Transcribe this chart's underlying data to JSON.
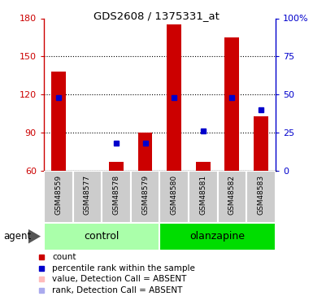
{
  "title": "GDS2608 / 1375331_at",
  "samples": [
    "GSM48559",
    "GSM48577",
    "GSM48578",
    "GSM48579",
    "GSM48580",
    "GSM48581",
    "GSM48582",
    "GSM48583"
  ],
  "red_values": [
    138,
    60,
    67,
    90,
    175,
    67,
    165,
    103
  ],
  "blue_values": [
    48,
    null,
    18,
    18,
    48,
    26,
    48,
    40
  ],
  "absent_red": [
    false,
    true,
    false,
    false,
    false,
    false,
    false,
    false
  ],
  "absent_blue": [
    false,
    true,
    false,
    false,
    false,
    false,
    false,
    false
  ],
  "ylim_left": [
    60,
    180
  ],
  "ylim_right": [
    0,
    100
  ],
  "yticks_left": [
    60,
    90,
    120,
    150,
    180
  ],
  "yticks_right": [
    0,
    25,
    50,
    75,
    100
  ],
  "ytick_labels_right": [
    "0",
    "25",
    "50",
    "75",
    "100%"
  ],
  "color_red": "#cc0000",
  "color_pink": "#ffbbbb",
  "color_blue": "#0000cc",
  "color_light_blue": "#aaaaee",
  "color_control_bg": "#aaffaa",
  "color_olanzapine_bg": "#00dd00",
  "color_gray_box": "#cccccc",
  "agent_label": "agent",
  "control_label": "control",
  "olanzapine_label": "olanzapine",
  "legend_items": [
    [
      "#cc0000",
      "count"
    ],
    [
      "#0000cc",
      "percentile rank within the sample"
    ],
    [
      "#ffbbbb",
      "value, Detection Call = ABSENT"
    ],
    [
      "#aaaaee",
      "rank, Detection Call = ABSENT"
    ]
  ]
}
